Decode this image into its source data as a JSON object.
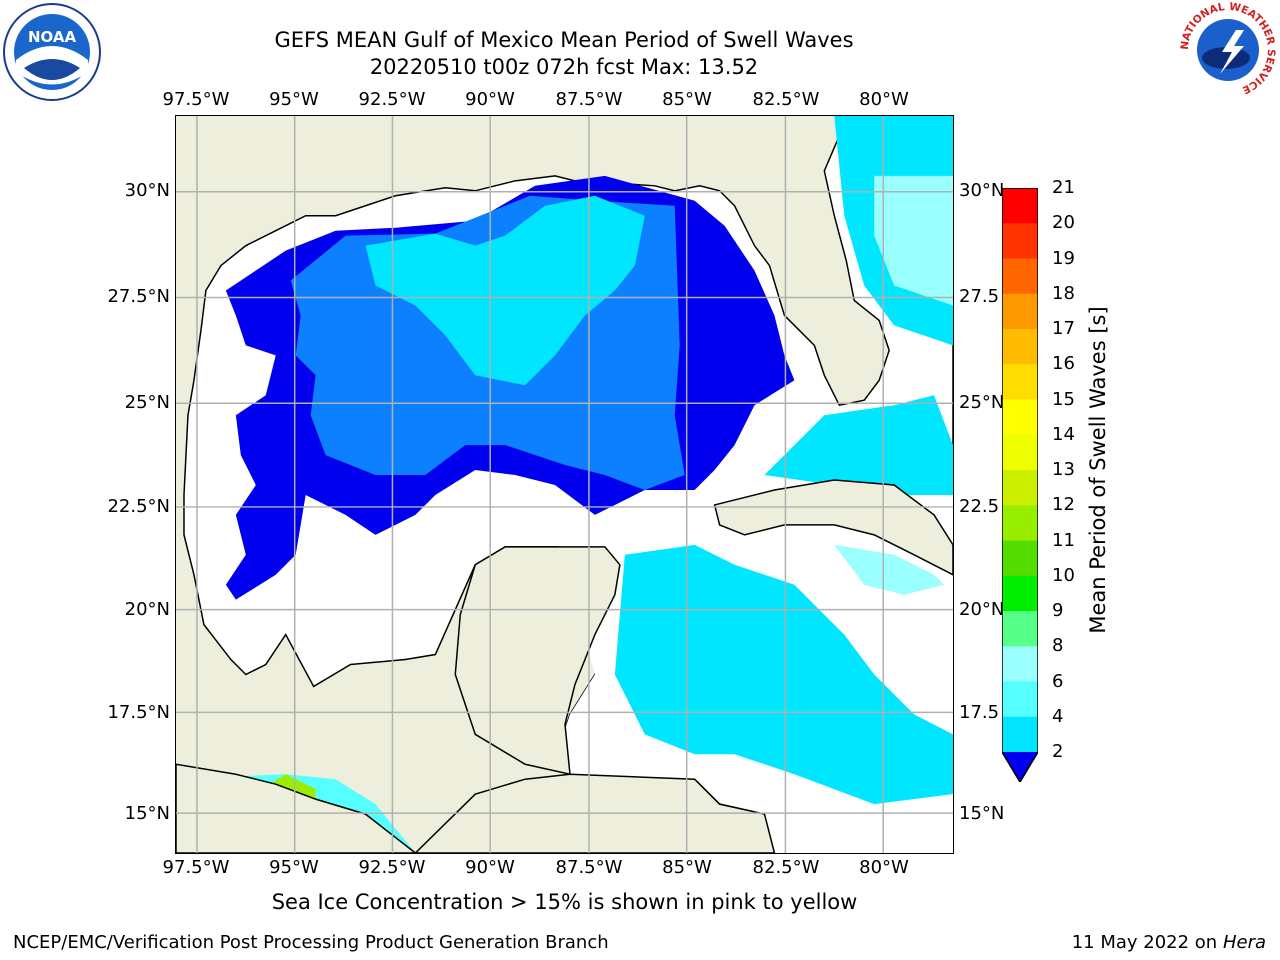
{
  "header": {
    "title_line1": "GEFS MEAN Gulf of Mexico Mean Period of Swell Waves",
    "title_line2": "20220510 t00z 072h fcst   Max: 13.52"
  },
  "logos": {
    "left": "NOAA",
    "right_ring_text": "NATIONAL WEATHER SERVICE"
  },
  "map": {
    "lon_labels": [
      "97.5°W",
      "95°W",
      "92.5°W",
      "90°W",
      "87.5°W",
      "85°W",
      "82.5°W",
      "80°W"
    ],
    "lat_labels_left": [
      "30°N",
      "27.5°N",
      "25°N",
      "22.5°N",
      "20°N",
      "17.5°N",
      "15°N"
    ],
    "lat_labels_right": [
      "30°N",
      "27.5",
      "25°N",
      "22.5",
      "20°N",
      "17.5",
      "15°N"
    ],
    "colors": {
      "land": "#eeeedd",
      "ocean_missing": "#ffffff",
      "grid": "#b0b0b0",
      "coast": "#000000"
    }
  },
  "colorbar": {
    "label": "Mean Period of Swell Waves [s]",
    "ticks": [
      "2",
      "4",
      "6",
      "8",
      "9",
      "10",
      "11",
      "12",
      "13",
      "14",
      "15",
      "16",
      "17",
      "18",
      "19",
      "20",
      "21"
    ],
    "colors": [
      "#0055ff",
      "#00e4ff",
      "#55ffff",
      "#99ffff",
      "#55ff88",
      "#00ee00",
      "#55dd00",
      "#99ee00",
      "#ccf000",
      "#eeff00",
      "#ffff00",
      "#ffdd00",
      "#ffbb00",
      "#ff9900",
      "#ff6600",
      "#ff3300",
      "#ff0000"
    ],
    "under_color": "#0000ee"
  },
  "footer": {
    "note": "Sea Ice Concentration > 15% is shown in pink to yellow",
    "credit_left": "NCEP/EMC/Verification Post Processing Product Generation Branch",
    "credit_date": "11 May 2022 on",
    "credit_host": "Hera"
  }
}
